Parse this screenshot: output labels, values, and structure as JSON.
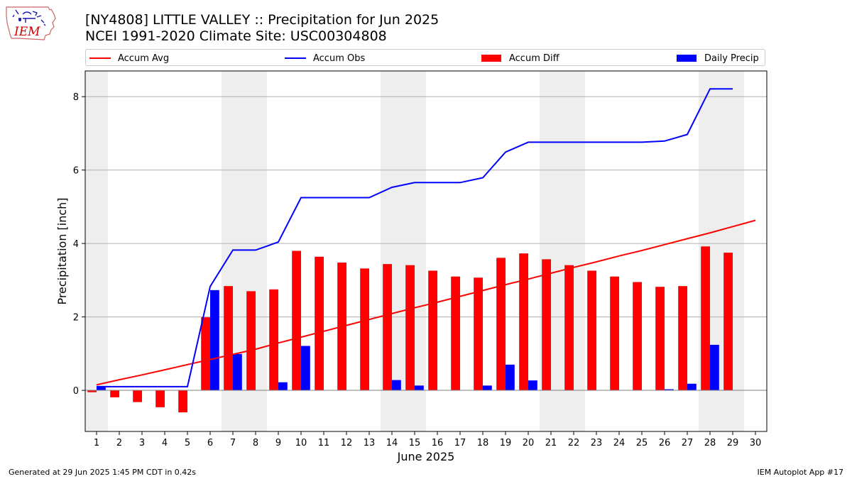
{
  "header": {
    "title_line1": "[NY4808] LITTLE VALLEY :: Precipitation for Jun 2025",
    "title_line2": "NCEI 1991-2020 Climate Site: USC00304808"
  },
  "logo": {
    "text": "IEM",
    "color": "#cc0000"
  },
  "legend": [
    {
      "label": "Accum Avg",
      "kind": "line",
      "color": "#ff0000"
    },
    {
      "label": "Accum Obs",
      "kind": "line",
      "color": "#0000ff"
    },
    {
      "label": "Accum Diff",
      "kind": "bar",
      "color": "#ff0000"
    },
    {
      "label": "Daily Precip",
      "kind": "bar",
      "color": "#0000ff"
    }
  ],
  "footer": {
    "left": "Generated at 29 Jun 2025 1:45 PM CDT in 0.42s",
    "right": "IEM Autoplot App #17"
  },
  "chart_data": {
    "type": "bar",
    "xlabel": "June 2025",
    "ylabel": "Precipitation [inch]",
    "xlim": [
      0.5,
      30.5
    ],
    "ylim": [
      -1.12,
      8.7
    ],
    "yticks": [
      0,
      2,
      4,
      6,
      8
    ],
    "days": [
      1,
      2,
      3,
      4,
      5,
      6,
      7,
      8,
      9,
      10,
      11,
      12,
      13,
      14,
      15,
      16,
      17,
      18,
      19,
      20,
      21,
      22,
      23,
      24,
      25,
      26,
      27,
      28,
      29,
      30
    ],
    "weekend_days": [
      1,
      7,
      8,
      14,
      15,
      21,
      22,
      28,
      29
    ],
    "grid_y": true,
    "legend_position": "top",
    "series": [
      {
        "name": "Accum Avg",
        "kind": "line",
        "color": "#ff0000",
        "values": [
          0.15,
          0.29,
          0.42,
          0.56,
          0.7,
          0.84,
          0.98,
          1.12,
          1.29,
          1.45,
          1.61,
          1.77,
          1.93,
          2.09,
          2.25,
          2.4,
          2.56,
          2.72,
          2.88,
          3.03,
          3.19,
          3.35,
          3.5,
          3.66,
          3.81,
          3.97,
          4.13,
          4.29,
          4.46,
          4.63
        ]
      },
      {
        "name": "Accum Obs",
        "kind": "line",
        "color": "#0000ff",
        "values": [
          0.1,
          0.1,
          0.1,
          0.1,
          0.1,
          2.83,
          3.82,
          3.82,
          4.04,
          5.25,
          5.25,
          5.25,
          5.25,
          5.53,
          5.66,
          5.66,
          5.66,
          5.79,
          6.49,
          6.76,
          6.76,
          6.76,
          6.76,
          6.76,
          6.76,
          6.79,
          6.97,
          8.21,
          8.21
        ]
      },
      {
        "name": "Accum Diff",
        "kind": "bar",
        "color": "#ff0000",
        "values": [
          -0.05,
          -0.19,
          -0.32,
          -0.46,
          -0.6,
          1.99,
          2.84,
          2.7,
          2.75,
          3.8,
          3.64,
          3.48,
          3.32,
          3.44,
          3.41,
          3.26,
          3.1,
          3.07,
          3.61,
          3.73,
          3.57,
          3.41,
          3.26,
          3.1,
          2.95,
          2.82,
          2.84,
          3.92,
          3.75
        ]
      },
      {
        "name": "Daily Precip",
        "kind": "bar",
        "color": "#0000ff",
        "values": [
          0.1,
          0.0,
          0.0,
          0.0,
          0.0,
          2.73,
          0.99,
          0.0,
          0.22,
          1.21,
          0.0,
          0.0,
          0.0,
          0.28,
          0.13,
          0.0,
          0.0,
          0.13,
          0.7,
          0.27,
          0.0,
          0.0,
          0.0,
          0.0,
          0.0,
          0.03,
          0.18,
          1.24,
          0.0
        ]
      }
    ]
  }
}
